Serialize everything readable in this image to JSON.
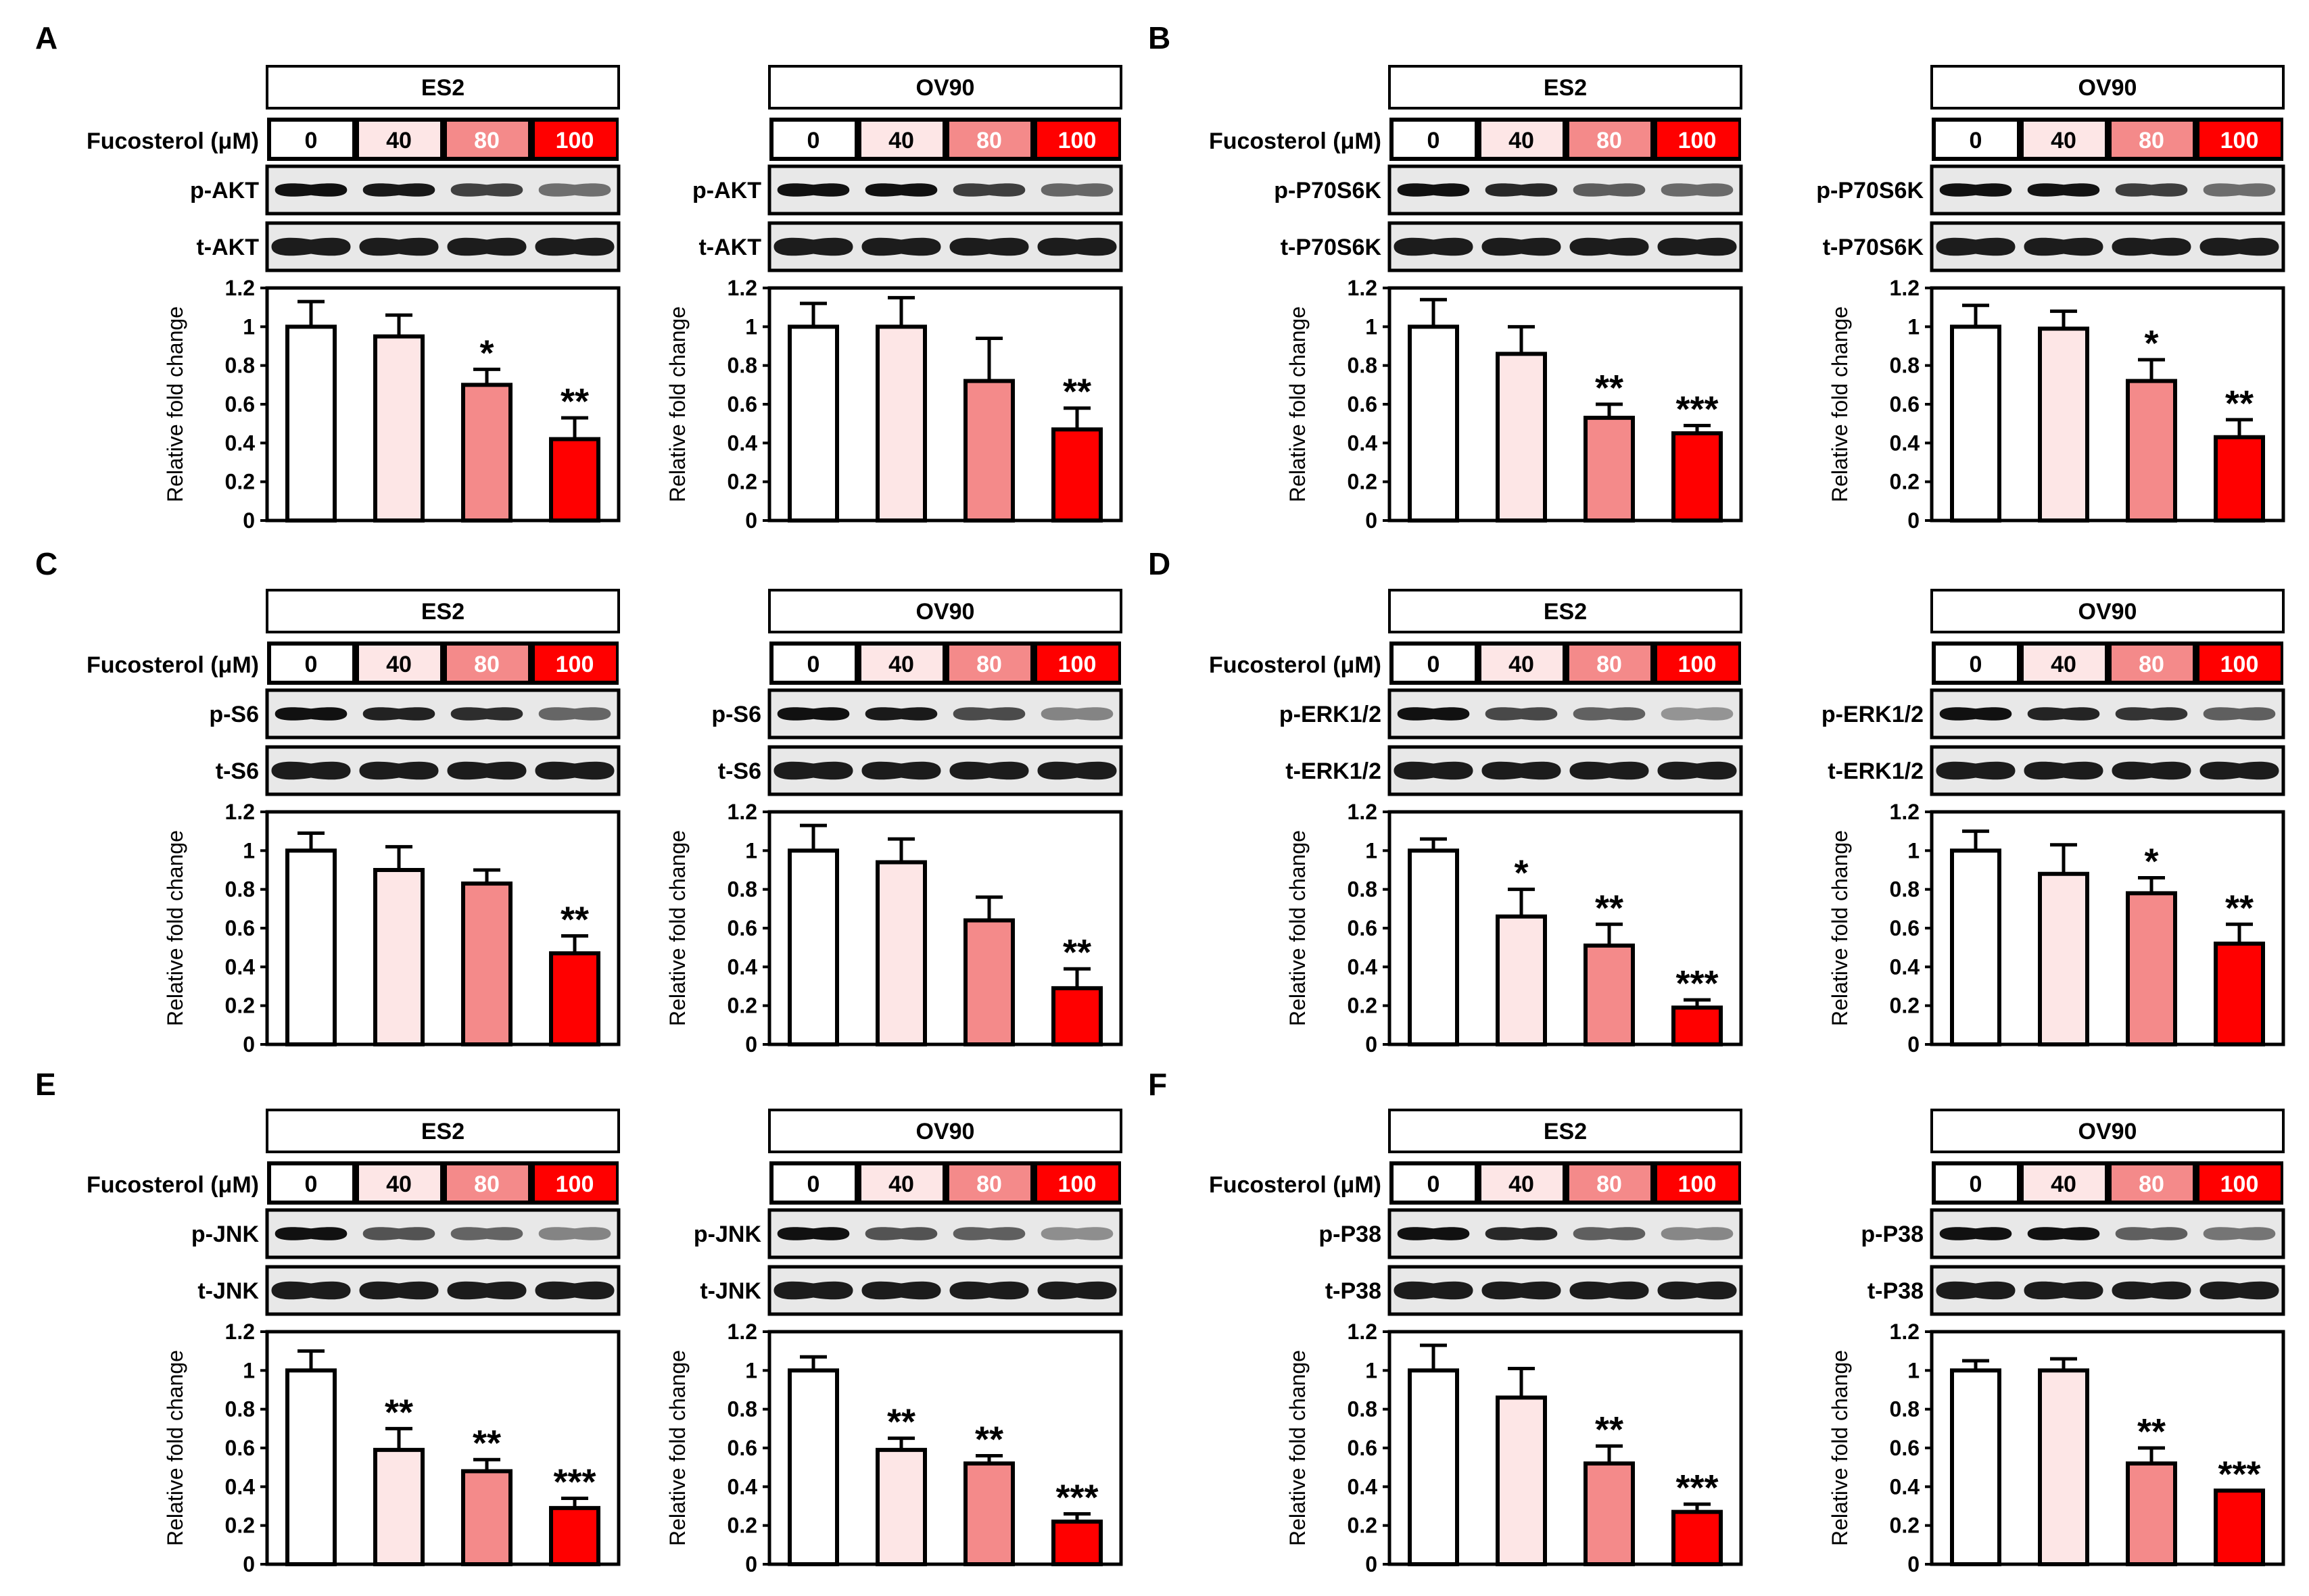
{
  "figure": {
    "dose_label": "Fucosterol (μM)",
    "doses": [
      "0",
      "40",
      "80",
      "100"
    ],
    "dose_colors": [
      "#ffffff",
      "#fde6e6",
      "#f48a8a",
      "#ff0000"
    ],
    "bar_outline": "#000000",
    "panels": [
      {
        "letter": "A"
      },
      {
        "letter": "B"
      },
      {
        "letter": "C"
      },
      {
        "letter": "D"
      },
      {
        "letter": "E"
      },
      {
        "letter": "F"
      }
    ]
  },
  "chart_data": [
    {
      "type": "bar",
      "panel": "A",
      "cell_line": "ES2",
      "blots": [
        "p-AKT",
        "t-AKT"
      ],
      "categories": [
        "0",
        "40",
        "80",
        "100"
      ],
      "values": [
        1.0,
        0.95,
        0.7,
        0.42
      ],
      "errors": [
        0.13,
        0.11,
        0.08,
        0.11
      ],
      "significance": [
        "",
        "",
        "*",
        "**"
      ],
      "ylabel": "Relative fold change",
      "ylim": [
        0,
        1.2
      ],
      "yticks": [
        "0",
        "0.2",
        "0.4",
        "0.6",
        "0.8",
        "1",
        "1.2"
      ]
    },
    {
      "type": "bar",
      "panel": "A",
      "cell_line": "OV90",
      "blots": [
        "p-AKT",
        "t-AKT"
      ],
      "categories": [
        "0",
        "40",
        "80",
        "100"
      ],
      "values": [
        1.0,
        1.0,
        0.72,
        0.47
      ],
      "errors": [
        0.12,
        0.15,
        0.22,
        0.11
      ],
      "significance": [
        "",
        "",
        "",
        "**"
      ],
      "ylabel": "Relative fold change",
      "ylim": [
        0,
        1.2
      ],
      "yticks": [
        "0",
        "0.2",
        "0.4",
        "0.6",
        "0.8",
        "1",
        "1.2"
      ]
    },
    {
      "type": "bar",
      "panel": "B",
      "cell_line": "ES2",
      "blots": [
        "p-P70S6K",
        "t-P70S6K"
      ],
      "categories": [
        "0",
        "40",
        "80",
        "100"
      ],
      "values": [
        1.0,
        0.86,
        0.53,
        0.45
      ],
      "errors": [
        0.14,
        0.14,
        0.07,
        0.04
      ],
      "significance": [
        "",
        "",
        "**",
        "***"
      ],
      "ylabel": "Relative fold change",
      "ylim": [
        0,
        1.2
      ],
      "yticks": [
        "0",
        "0.2",
        "0.4",
        "0.6",
        "0.8",
        "1",
        "1.2"
      ]
    },
    {
      "type": "bar",
      "panel": "B",
      "cell_line": "OV90",
      "blots": [
        "p-P70S6K",
        "t-P70S6K"
      ],
      "categories": [
        "0",
        "40",
        "80",
        "100"
      ],
      "values": [
        1.0,
        0.99,
        0.72,
        0.43
      ],
      "errors": [
        0.11,
        0.09,
        0.11,
        0.09
      ],
      "significance": [
        "",
        "",
        "*",
        "**"
      ],
      "ylabel": "Relative fold change",
      "ylim": [
        0,
        1.2
      ],
      "yticks": [
        "0",
        "0.2",
        "0.4",
        "0.6",
        "0.8",
        "1",
        "1.2"
      ]
    },
    {
      "type": "bar",
      "panel": "C",
      "cell_line": "ES2",
      "blots": [
        "p-S6",
        "t-S6"
      ],
      "categories": [
        "0",
        "40",
        "80",
        "100"
      ],
      "values": [
        1.0,
        0.9,
        0.83,
        0.47
      ],
      "errors": [
        0.09,
        0.12,
        0.07,
        0.09
      ],
      "significance": [
        "",
        "",
        "",
        "**"
      ],
      "ylabel": "Relative fold change",
      "ylim": [
        0,
        1.2
      ],
      "yticks": [
        "0",
        "0.2",
        "0.4",
        "0.6",
        "0.8",
        "1",
        "1.2"
      ]
    },
    {
      "type": "bar",
      "panel": "C",
      "cell_line": "OV90",
      "blots": [
        "p-S6",
        "t-S6"
      ],
      "categories": [
        "0",
        "40",
        "80",
        "100"
      ],
      "values": [
        1.0,
        0.94,
        0.64,
        0.29
      ],
      "errors": [
        0.13,
        0.12,
        0.12,
        0.1
      ],
      "significance": [
        "",
        "",
        "",
        "**"
      ],
      "ylabel": "Relative fold change",
      "ylim": [
        0,
        1.2
      ],
      "yticks": [
        "0",
        "0.2",
        "0.4",
        "0.6",
        "0.8",
        "1",
        "1.2"
      ]
    },
    {
      "type": "bar",
      "panel": "D",
      "cell_line": "ES2",
      "blots": [
        "p-ERK1/2",
        "t-ERK1/2"
      ],
      "categories": [
        "0",
        "40",
        "80",
        "100"
      ],
      "values": [
        1.0,
        0.66,
        0.51,
        0.19
      ],
      "errors": [
        0.06,
        0.14,
        0.11,
        0.04
      ],
      "significance": [
        "",
        "*",
        "**",
        "***"
      ],
      "ylabel": "Relative fold change",
      "ylim": [
        0,
        1.2
      ],
      "yticks": [
        "0",
        "0.2",
        "0.4",
        "0.6",
        "0.8",
        "1",
        "1.2"
      ]
    },
    {
      "type": "bar",
      "panel": "D",
      "cell_line": "OV90",
      "blots": [
        "p-ERK1/2",
        "t-ERK1/2"
      ],
      "categories": [
        "0",
        "40",
        "80",
        "100"
      ],
      "values": [
        1.0,
        0.88,
        0.78,
        0.52
      ],
      "errors": [
        0.1,
        0.15,
        0.08,
        0.1
      ],
      "significance": [
        "",
        "",
        "*",
        "**"
      ],
      "ylabel": "Relative fold change",
      "ylim": [
        0,
        1.2
      ],
      "yticks": [
        "0",
        "0.2",
        "0.4",
        "0.6",
        "0.8",
        "1",
        "1.2"
      ]
    },
    {
      "type": "bar",
      "panel": "E",
      "cell_line": "ES2",
      "blots": [
        "p-JNK",
        "t-JNK"
      ],
      "categories": [
        "0",
        "40",
        "80",
        "100"
      ],
      "values": [
        1.0,
        0.59,
        0.48,
        0.29
      ],
      "errors": [
        0.1,
        0.11,
        0.06,
        0.05
      ],
      "significance": [
        "",
        "**",
        "**",
        "***"
      ],
      "ylabel": "Relative fold change",
      "ylim": [
        0,
        1.2
      ],
      "yticks": [
        "0",
        "0.2",
        "0.4",
        "0.6",
        "0.8",
        "1",
        "1.2"
      ]
    },
    {
      "type": "bar",
      "panel": "E",
      "cell_line": "OV90",
      "blots": [
        "p-JNK",
        "t-JNK"
      ],
      "categories": [
        "0",
        "40",
        "80",
        "100"
      ],
      "values": [
        1.0,
        0.59,
        0.52,
        0.22
      ],
      "errors": [
        0.07,
        0.06,
        0.04,
        0.04
      ],
      "significance": [
        "",
        "**",
        "**",
        "***"
      ],
      "ylabel": "Relative fold change",
      "ylim": [
        0,
        1.2
      ],
      "yticks": [
        "0",
        "0.2",
        "0.4",
        "0.6",
        "0.8",
        "1",
        "1.2"
      ]
    },
    {
      "type": "bar",
      "panel": "F",
      "cell_line": "ES2",
      "blots": [
        "p-P38",
        "t-P38"
      ],
      "categories": [
        "0",
        "40",
        "80",
        "100"
      ],
      "values": [
        1.0,
        0.86,
        0.52,
        0.27
      ],
      "errors": [
        0.13,
        0.15,
        0.09,
        0.04
      ],
      "significance": [
        "",
        "",
        "**",
        "***"
      ],
      "ylabel": "Relative fold change",
      "ylim": [
        0,
        1.2
      ],
      "yticks": [
        "0",
        "0.2",
        "0.4",
        "0.6",
        "0.8",
        "1",
        "1.2"
      ]
    },
    {
      "type": "bar",
      "panel": "F",
      "cell_line": "OV90",
      "blots": [
        "p-P38",
        "t-P38"
      ],
      "categories": [
        "0",
        "40",
        "80",
        "100"
      ],
      "values": [
        1.0,
        1.0,
        0.52,
        0.38
      ],
      "errors": [
        0.05,
        0.06,
        0.08,
        0.0
      ],
      "significance": [
        "",
        "",
        "**",
        "***"
      ],
      "ylabel": "Relative fold change",
      "ylim": [
        0,
        1.2
      ],
      "yticks": [
        "0",
        "0.2",
        "0.4",
        "0.6",
        "0.8",
        "1",
        "1.2"
      ]
    }
  ]
}
